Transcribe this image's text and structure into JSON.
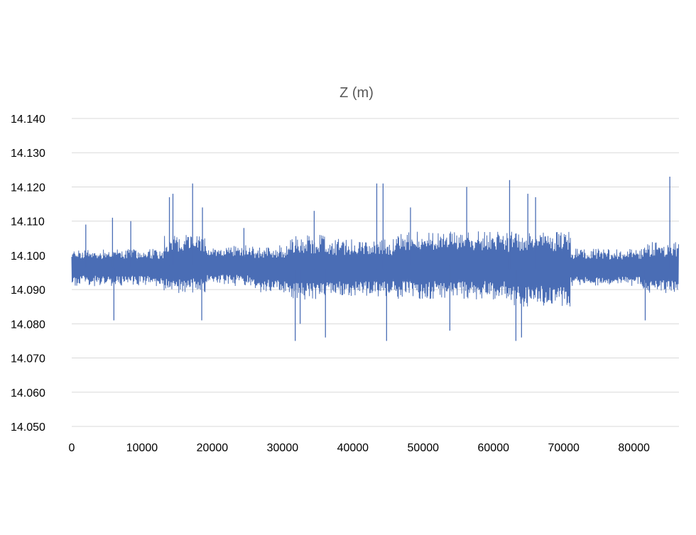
{
  "chart_data": {
    "type": "line",
    "title": "Z (m)",
    "xlabel": "",
    "ylabel": "",
    "xlim": [
      0,
      86400
    ],
    "ylim": [
      14.05,
      14.14
    ],
    "x_ticks": [
      "0",
      "10000",
      "20000",
      "30000",
      "40000",
      "50000",
      "60000",
      "70000",
      "80000"
    ],
    "y_ticks": [
      "14.050",
      "14.060",
      "14.070",
      "14.080",
      "14.090",
      "14.100",
      "14.110",
      "14.120",
      "14.130",
      "14.140"
    ],
    "grid": "horizontal",
    "legend": "none",
    "series": [
      {
        "color": "#4a6db5",
        "summary": {
          "mean": 14.096,
          "min": 14.075,
          "max": 14.123
        },
        "segments": [
          {
            "x_start": 0,
            "x_end": 13000,
            "center": 14.0965,
            "band_low": 14.091,
            "band_high": 14.102
          },
          {
            "x_start": 13000,
            "x_end": 19000,
            "center": 14.097,
            "band_low": 14.089,
            "band_high": 14.106
          },
          {
            "x_start": 19000,
            "x_end": 26000,
            "center": 14.097,
            "band_low": 14.091,
            "band_high": 14.103
          },
          {
            "x_start": 26000,
            "x_end": 31000,
            "center": 14.096,
            "band_low": 14.089,
            "band_high": 14.103
          },
          {
            "x_start": 31000,
            "x_end": 36000,
            "center": 14.096,
            "band_low": 14.087,
            "band_high": 14.106
          },
          {
            "x_start": 36000,
            "x_end": 46000,
            "center": 14.096,
            "band_low": 14.088,
            "band_high": 14.105
          },
          {
            "x_start": 46000,
            "x_end": 62000,
            "center": 14.097,
            "band_low": 14.087,
            "band_high": 14.107
          },
          {
            "x_start": 62000,
            "x_end": 71000,
            "center": 14.096,
            "band_low": 14.085,
            "band_high": 14.107
          },
          {
            "x_start": 71000,
            "x_end": 81000,
            "center": 14.096,
            "band_low": 14.091,
            "band_high": 14.102
          },
          {
            "x_start": 81000,
            "x_end": 86400,
            "center": 14.096,
            "band_low": 14.089,
            "band_high": 14.104
          }
        ],
        "spikes": [
          {
            "x": 2000,
            "y": 14.109
          },
          {
            "x": 5800,
            "y": 14.111
          },
          {
            "x": 8400,
            "y": 14.11
          },
          {
            "x": 13900,
            "y": 14.117
          },
          {
            "x": 14400,
            "y": 14.118
          },
          {
            "x": 17200,
            "y": 14.121
          },
          {
            "x": 18600,
            "y": 14.114
          },
          {
            "x": 24500,
            "y": 14.108
          },
          {
            "x": 34500,
            "y": 14.113
          },
          {
            "x": 43400,
            "y": 14.121
          },
          {
            "x": 44300,
            "y": 14.121
          },
          {
            "x": 48200,
            "y": 14.114
          },
          {
            "x": 56200,
            "y": 14.12
          },
          {
            "x": 62300,
            "y": 14.122
          },
          {
            "x": 64900,
            "y": 14.118
          },
          {
            "x": 66000,
            "y": 14.117
          },
          {
            "x": 85100,
            "y": 14.123
          },
          {
            "x": 6000,
            "y": 14.081
          },
          {
            "x": 18500,
            "y": 14.081
          },
          {
            "x": 31800,
            "y": 14.075
          },
          {
            "x": 32500,
            "y": 14.08
          },
          {
            "x": 36100,
            "y": 14.076
          },
          {
            "x": 44800,
            "y": 14.075
          },
          {
            "x": 53800,
            "y": 14.078
          },
          {
            "x": 63200,
            "y": 14.075
          },
          {
            "x": 64000,
            "y": 14.076
          },
          {
            "x": 81600,
            "y": 14.081
          }
        ]
      }
    ]
  }
}
